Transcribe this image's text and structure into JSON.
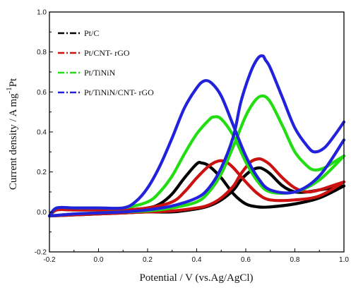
{
  "chart_data": {
    "type": "line",
    "xlabel": "Potential / V (vs.Ag/AgCl)",
    "ylabel": "Current density / A mg",
    "ylabel_superscript": "-1",
    "ylabel_suffix": "Pt",
    "xlim": [
      -0.2,
      1.0
    ],
    "ylim": [
      -0.2,
      1.0
    ],
    "xticks": [
      "-0.2",
      "0.0",
      "0.2",
      "0.4",
      "0.6",
      "0.8",
      "1.0"
    ],
    "yticks": [
      "-0.2",
      "0.0",
      "0.2",
      "0.4",
      "0.6",
      "0.8",
      "1.0"
    ],
    "legend_position": "top-left",
    "grid": false,
    "series": [
      {
        "name": "Pt/C",
        "color": "#000000",
        "forward": [
          [
            -0.2,
            -0.02
          ],
          [
            -0.17,
            0.01
          ],
          [
            -0.1,
            0.01
          ],
          [
            0.0,
            0.01
          ],
          [
            0.1,
            0.01
          ],
          [
            0.2,
            0.02
          ],
          [
            0.25,
            0.04
          ],
          [
            0.3,
            0.09
          ],
          [
            0.35,
            0.17
          ],
          [
            0.4,
            0.24
          ],
          [
            0.42,
            0.245
          ],
          [
            0.45,
            0.23
          ],
          [
            0.5,
            0.17
          ],
          [
            0.55,
            0.09
          ],
          [
            0.6,
            0.04
          ],
          [
            0.65,
            0.025
          ],
          [
            0.7,
            0.025
          ],
          [
            0.8,
            0.04
          ],
          [
            0.9,
            0.07
          ],
          [
            1.0,
            0.13
          ]
        ],
        "reverse": [
          [
            1.0,
            0.13
          ],
          [
            0.95,
            0.12
          ],
          [
            0.9,
            0.11
          ],
          [
            0.85,
            0.1
          ],
          [
            0.8,
            0.1
          ],
          [
            0.75,
            0.13
          ],
          [
            0.7,
            0.19
          ],
          [
            0.67,
            0.215
          ],
          [
            0.65,
            0.22
          ],
          [
            0.62,
            0.205
          ],
          [
            0.58,
            0.16
          ],
          [
            0.55,
            0.11
          ],
          [
            0.5,
            0.06
          ],
          [
            0.45,
            0.03
          ],
          [
            0.4,
            0.015
          ],
          [
            0.3,
            0.0
          ],
          [
            0.2,
            0.0
          ],
          [
            0.1,
            -0.005
          ],
          [
            0.0,
            -0.01
          ],
          [
            -0.1,
            -0.015
          ],
          [
            -0.2,
            -0.02
          ]
        ]
      },
      {
        "name": "Pt/CNT- rGO",
        "color": "#cc1111",
        "forward": [
          [
            -0.2,
            -0.02
          ],
          [
            -0.17,
            0.01
          ],
          [
            -0.1,
            0.01
          ],
          [
            0.0,
            0.01
          ],
          [
            0.1,
            0.01
          ],
          [
            0.2,
            0.02
          ],
          [
            0.3,
            0.05
          ],
          [
            0.35,
            0.1
          ],
          [
            0.4,
            0.17
          ],
          [
            0.45,
            0.23
          ],
          [
            0.49,
            0.255
          ],
          [
            0.52,
            0.25
          ],
          [
            0.55,
            0.22
          ],
          [
            0.6,
            0.15
          ],
          [
            0.65,
            0.09
          ],
          [
            0.7,
            0.06
          ],
          [
            0.8,
            0.06
          ],
          [
            0.9,
            0.08
          ],
          [
            1.0,
            0.15
          ]
        ],
        "reverse": [
          [
            1.0,
            0.15
          ],
          [
            0.95,
            0.13
          ],
          [
            0.9,
            0.11
          ],
          [
            0.85,
            0.1
          ],
          [
            0.8,
            0.12
          ],
          [
            0.75,
            0.17
          ],
          [
            0.7,
            0.235
          ],
          [
            0.67,
            0.26
          ],
          [
            0.65,
            0.265
          ],
          [
            0.62,
            0.25
          ],
          [
            0.58,
            0.19
          ],
          [
            0.55,
            0.13
          ],
          [
            0.5,
            0.07
          ],
          [
            0.45,
            0.035
          ],
          [
            0.4,
            0.02
          ],
          [
            0.3,
            0.005
          ],
          [
            0.2,
            0.0
          ],
          [
            0.1,
            -0.005
          ],
          [
            0.0,
            -0.01
          ],
          [
            -0.1,
            -0.015
          ],
          [
            -0.2,
            -0.02
          ]
        ]
      },
      {
        "name": "Pt/TiNiN",
        "color": "#22dd11",
        "forward": [
          [
            -0.2,
            -0.02
          ],
          [
            -0.17,
            0.02
          ],
          [
            -0.1,
            0.02
          ],
          [
            0.0,
            0.02
          ],
          [
            0.1,
            0.02
          ],
          [
            0.2,
            0.05
          ],
          [
            0.25,
            0.1
          ],
          [
            0.3,
            0.18
          ],
          [
            0.35,
            0.29
          ],
          [
            0.4,
            0.39
          ],
          [
            0.45,
            0.46
          ],
          [
            0.47,
            0.475
          ],
          [
            0.5,
            0.465
          ],
          [
            0.55,
            0.38
          ],
          [
            0.6,
            0.25
          ],
          [
            0.65,
            0.15
          ],
          [
            0.7,
            0.1
          ],
          [
            0.8,
            0.1
          ],
          [
            0.9,
            0.16
          ],
          [
            1.0,
            0.28
          ]
        ],
        "reverse": [
          [
            1.0,
            0.28
          ],
          [
            0.96,
            0.25
          ],
          [
            0.92,
            0.22
          ],
          [
            0.88,
            0.21
          ],
          [
            0.85,
            0.23
          ],
          [
            0.8,
            0.3
          ],
          [
            0.75,
            0.43
          ],
          [
            0.7,
            0.55
          ],
          [
            0.67,
            0.58
          ],
          [
            0.64,
            0.56
          ],
          [
            0.6,
            0.48
          ],
          [
            0.55,
            0.33
          ],
          [
            0.5,
            0.19
          ],
          [
            0.45,
            0.1
          ],
          [
            0.4,
            0.05
          ],
          [
            0.3,
            0.02
          ],
          [
            0.2,
            0.005
          ],
          [
            0.1,
            0.0
          ],
          [
            0.0,
            -0.005
          ],
          [
            -0.1,
            -0.01
          ],
          [
            -0.2,
            -0.02
          ]
        ]
      },
      {
        "name": "Pt/TiNiN/CNT- rGO",
        "color": "#2222dd",
        "forward": [
          [
            -0.2,
            -0.02
          ],
          [
            -0.17,
            0.02
          ],
          [
            -0.1,
            0.02
          ],
          [
            0.0,
            0.02
          ],
          [
            0.1,
            0.02
          ],
          [
            0.15,
            0.05
          ],
          [
            0.2,
            0.12
          ],
          [
            0.25,
            0.23
          ],
          [
            0.3,
            0.37
          ],
          [
            0.35,
            0.52
          ],
          [
            0.4,
            0.62
          ],
          [
            0.43,
            0.655
          ],
          [
            0.46,
            0.645
          ],
          [
            0.5,
            0.58
          ],
          [
            0.55,
            0.43
          ],
          [
            0.6,
            0.28
          ],
          [
            0.65,
            0.17
          ],
          [
            0.7,
            0.11
          ],
          [
            0.8,
            0.1
          ],
          [
            0.9,
            0.18
          ],
          [
            1.0,
            0.36
          ]
        ],
        "reverse": [
          [
            1.0,
            0.45
          ],
          [
            0.96,
            0.38
          ],
          [
            0.92,
            0.32
          ],
          [
            0.88,
            0.3
          ],
          [
            0.85,
            0.33
          ],
          [
            0.8,
            0.42
          ],
          [
            0.75,
            0.57
          ],
          [
            0.7,
            0.72
          ],
          [
            0.68,
            0.76
          ],
          [
            0.67,
            0.78
          ],
          [
            0.65,
            0.77
          ],
          [
            0.62,
            0.7
          ],
          [
            0.58,
            0.55
          ],
          [
            0.55,
            0.38
          ],
          [
            0.5,
            0.22
          ],
          [
            0.45,
            0.12
          ],
          [
            0.4,
            0.07
          ],
          [
            0.3,
            0.03
          ],
          [
            0.2,
            0.01
          ],
          [
            0.1,
            0.0
          ],
          [
            0.0,
            -0.005
          ],
          [
            -0.1,
            -0.01
          ],
          [
            -0.2,
            -0.02
          ]
        ]
      }
    ]
  }
}
